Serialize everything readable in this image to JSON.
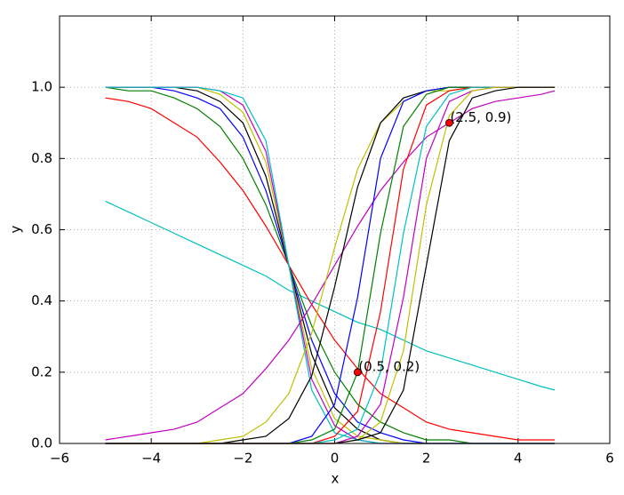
{
  "chart_data": {
    "type": "line",
    "xlabel": "x",
    "ylabel": "y",
    "x": [
      -5,
      -4.5,
      -4,
      -3.5,
      -3,
      -2.5,
      -2,
      -1.5,
      -1,
      -0.5,
      0,
      0.5,
      1,
      1.5,
      2,
      2.5,
      3,
      3.5,
      4,
      4.5,
      4.8
    ],
    "series": [
      {
        "color": "#00bfbf",
        "values": [
          0.68,
          0.65,
          0.62,
          0.59,
          0.56,
          0.53,
          0.5,
          0.47,
          0.43,
          0.4,
          0.37,
          0.34,
          0.32,
          0.29,
          0.26,
          0.24,
          0.22,
          0.2,
          0.18,
          0.16,
          0.15
        ]
      },
      {
        "color": "#ff0000",
        "values": [
          0.97,
          0.96,
          0.94,
          0.9,
          0.86,
          0.79,
          0.71,
          0.61,
          0.5,
          0.39,
          0.29,
          0.21,
          0.14,
          0.1,
          0.06,
          0.04,
          0.03,
          0.02,
          0.01,
          0.01,
          0.01
        ]
      },
      {
        "color": "#008000",
        "values": [
          1,
          0.99,
          0.99,
          0.97,
          0.94,
          0.89,
          0.8,
          0.67,
          0.5,
          0.33,
          0.2,
          0.11,
          0.06,
          0.03,
          0.01,
          0.01,
          0,
          0,
          0,
          0,
          0
        ]
      },
      {
        "color": "#0000ff",
        "values": [
          1,
          1,
          1,
          0.99,
          0.97,
          0.94,
          0.86,
          0.71,
          0.5,
          0.29,
          0.14,
          0.06,
          0.03,
          0.01,
          0,
          0,
          0,
          0,
          0,
          0,
          0
        ]
      },
      {
        "color": "#000000",
        "values": [
          1,
          1,
          1,
          1,
          0.99,
          0.96,
          0.9,
          0.75,
          0.5,
          0.25,
          0.1,
          0.04,
          0.01,
          0,
          0,
          0,
          0,
          0,
          0,
          0,
          0
        ]
      },
      {
        "color": "#bfbf00",
        "values": [
          1,
          1,
          1,
          1,
          1,
          0.98,
          0.93,
          0.79,
          0.5,
          0.21,
          0.07,
          0.02,
          0.01,
          0,
          0,
          0,
          0,
          0,
          0,
          0,
          0
        ]
      },
      {
        "color": "#bf00bf",
        "values": [
          1,
          1,
          1,
          1,
          1,
          0.99,
          0.95,
          0.82,
          0.5,
          0.18,
          0.05,
          0.01,
          0,
          0,
          0,
          0,
          0,
          0,
          0,
          0,
          0
        ]
      },
      {
        "color": "#00bfbf",
        "values": [
          1,
          1,
          1,
          1,
          1,
          0.99,
          0.97,
          0.85,
          0.5,
          0.15,
          0.03,
          0.01,
          0,
          0,
          0,
          0,
          0,
          0,
          0,
          0,
          0
        ]
      },
      {
        "color": "#bf00bf",
        "values": [
          0.01,
          0.02,
          0.03,
          0.04,
          0.06,
          0.1,
          0.14,
          0.21,
          0.29,
          0.39,
          0.5,
          0.61,
          0.71,
          0.79,
          0.86,
          0.9,
          0.94,
          0.96,
          0.97,
          0.98,
          0.99
        ]
      },
      {
        "color": "#bfbf00",
        "values": [
          0,
          0,
          0,
          0,
          0,
          0.01,
          0.02,
          0.06,
          0.14,
          0.31,
          0.55,
          0.77,
          0.9,
          0.96,
          0.99,
          0.99,
          1,
          1,
          1,
          1,
          1
        ]
      },
      {
        "color": "#000000",
        "values": [
          0,
          0,
          0,
          0,
          0,
          0,
          0.01,
          0.02,
          0.07,
          0.19,
          0.44,
          0.72,
          0.9,
          0.97,
          0.99,
          1,
          1,
          1,
          1,
          1,
          1
        ]
      },
      {
        "color": "#0000ff",
        "values": [
          0,
          0,
          0,
          0,
          0,
          0,
          0,
          0,
          0,
          0.02,
          0.11,
          0.41,
          0.8,
          0.96,
          0.99,
          1,
          1,
          1,
          1,
          1,
          1
        ]
      },
      {
        "color": "#008000",
        "values": [
          0,
          0,
          0,
          0,
          0,
          0,
          0,
          0,
          0,
          0.01,
          0.04,
          0.2,
          0.59,
          0.89,
          0.98,
          1,
          1,
          1,
          1,
          1,
          1
        ]
      },
      {
        "color": "#ff0000",
        "values": [
          0,
          0,
          0,
          0,
          0,
          0,
          0,
          0,
          0,
          0,
          0.02,
          0.09,
          0.37,
          0.77,
          0.95,
          0.99,
          1,
          1,
          1,
          1,
          1
        ]
      },
      {
        "color": "#00bfbf",
        "values": [
          0,
          0,
          0,
          0,
          0,
          0,
          0,
          0,
          0,
          0,
          0.01,
          0.04,
          0.2,
          0.59,
          0.89,
          0.98,
          1,
          1,
          1,
          1,
          1
        ]
      },
      {
        "color": "#bf00bf",
        "values": [
          0,
          0,
          0,
          0,
          0,
          0,
          0,
          0,
          0,
          0,
          0,
          0.02,
          0.11,
          0.41,
          0.8,
          0.96,
          0.99,
          1,
          1,
          1,
          1
        ]
      },
      {
        "color": "#bfbf00",
        "values": [
          0,
          0,
          0,
          0,
          0,
          0,
          0,
          0,
          0,
          0,
          0,
          0.01,
          0.06,
          0.26,
          0.67,
          0.92,
          0.99,
          1,
          1,
          1,
          1
        ]
      },
      {
        "color": "#000000",
        "values": [
          0,
          0,
          0,
          0,
          0,
          0,
          0,
          0,
          0,
          0,
          0,
          0.01,
          0.03,
          0.15,
          0.5,
          0.85,
          0.97,
          0.99,
          1,
          1,
          1
        ]
      }
    ],
    "annotations": [
      {
        "text": "(0.5, 0.2)",
        "x": 0.5,
        "y": 0.2,
        "color": "#ff0000"
      },
      {
        "text": "(2.5, 0.9)",
        "x": 2.5,
        "y": 0.9,
        "color": "#ff0000"
      }
    ],
    "xlim": [
      -6,
      6
    ],
    "xticks": [
      {
        "value": -6,
        "label": "−6"
      },
      {
        "value": -4,
        "label": "−4"
      },
      {
        "value": -2,
        "label": "−2"
      },
      0,
      2,
      4,
      6
    ],
    "ylim": [
      0,
      1.2
    ],
    "yticks": [
      {
        "value": 0,
        "label": "0.0"
      },
      0.2,
      0.4,
      0.6,
      0.8,
      {
        "value": 1,
        "label": "1.0"
      }
    ],
    "grid": true
  }
}
